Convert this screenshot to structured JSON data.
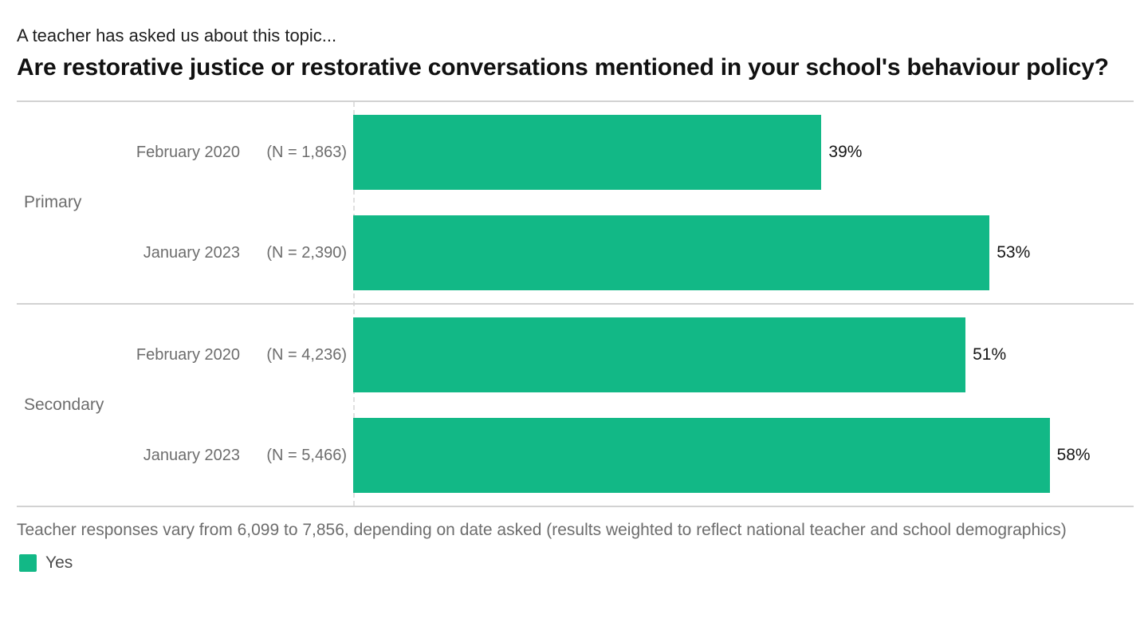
{
  "header": {
    "kicker": "A teacher has asked us about this topic...",
    "title": "Are restorative justice or restorative conversations mentioned in your school's behaviour policy?"
  },
  "chart_data": {
    "type": "bar",
    "orientation": "horizontal",
    "unit": "percent",
    "axis_max": 65,
    "bar_color": "#12b886",
    "grid": "off",
    "legend_position": "bottom-left",
    "groups": [
      {
        "label": "Primary",
        "rows": [
          {
            "date": "February 2020",
            "n": "(N = 1,863)",
            "value": 39,
            "value_label": "39%"
          },
          {
            "date": "January 2023",
            "n": "(N = 2,390)",
            "value": 53,
            "value_label": "53%"
          }
        ]
      },
      {
        "label": "Secondary",
        "rows": [
          {
            "date": "February 2020",
            "n": "(N = 4,236)",
            "value": 51,
            "value_label": "51%"
          },
          {
            "date": "January 2023",
            "n": "(N = 5,466)",
            "value": 58,
            "value_label": "58%"
          }
        ]
      }
    ],
    "series": [
      {
        "name": "Yes",
        "categories": [
          "Primary February 2020",
          "Primary January 2023",
          "Secondary February 2020",
          "Secondary January 2023"
        ],
        "values": [
          39,
          53,
          51,
          58
        ]
      }
    ],
    "footnote": "Teacher responses vary from 6,099 to 7,856, depending on date asked (results weighted to reflect national teacher and school demographics)",
    "legend": {
      "label": "Yes",
      "color": "#12b886"
    }
  }
}
